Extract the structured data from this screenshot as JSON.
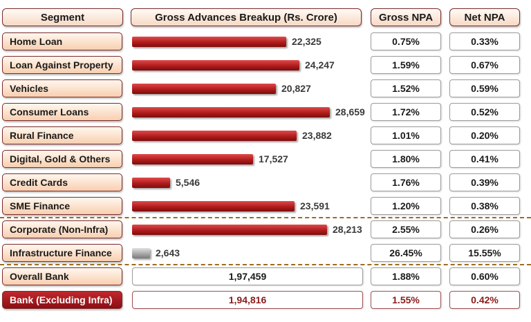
{
  "headers": {
    "segment": "Segment",
    "advances": "Gross Advances Breakup (Rs. Crore)",
    "gross_npa": "Gross NPA",
    "net_npa": "Net NPA"
  },
  "rows": [
    {
      "segment": "Home Loan",
      "advances": "22,325",
      "gross_npa": "0.75%",
      "net_npa": "0.33%"
    },
    {
      "segment": "Loan Against Property",
      "advances": "24,247",
      "gross_npa": "1.59%",
      "net_npa": "0.67%"
    },
    {
      "segment": "Vehicles",
      "advances": "20,827",
      "gross_npa": "1.52%",
      "net_npa": "0.59%"
    },
    {
      "segment": "Consumer Loans",
      "advances": "28,659",
      "gross_npa": "1.72%",
      "net_npa": "0.52%"
    },
    {
      "segment": "Rural Finance",
      "advances": "23,882",
      "gross_npa": "1.01%",
      "net_npa": "0.20%"
    },
    {
      "segment": "Digital, Gold & Others",
      "advances": "17,527",
      "gross_npa": "1.80%",
      "net_npa": "0.41%"
    },
    {
      "segment": "Credit Cards",
      "advances": "5,546",
      "gross_npa": "1.76%",
      "net_npa": "0.39%"
    },
    {
      "segment": "SME Finance",
      "advances": "23,591",
      "gross_npa": "1.20%",
      "net_npa": "0.38%"
    },
    {
      "segment": "Corporate (Non-Infra)",
      "advances": "28,213",
      "gross_npa": "2.55%",
      "net_npa": "0.26%"
    },
    {
      "segment": "Infrastructure Finance",
      "advances": "2,643",
      "gross_npa": "26.45%",
      "net_npa": "15.55%"
    }
  ],
  "totals": [
    {
      "segment": "Overall Bank",
      "advances": "1,97,459",
      "gross_npa": "1.88%",
      "net_npa": "0.60%"
    },
    {
      "segment": "Bank (Excluding Infra)",
      "advances": "1,94,816",
      "gross_npa": "1.55%",
      "net_npa": "0.42%"
    }
  ],
  "chart_data": {
    "type": "bar",
    "orientation": "horizontal",
    "title": "Gross Advances Breakup (Rs. Crore)",
    "categories": [
      "Home Loan",
      "Loan Against Property",
      "Vehicles",
      "Consumer Loans",
      "Rural Finance",
      "Digital, Gold & Others",
      "Credit Cards",
      "SME Finance",
      "Corporate (Non-Infra)",
      "Infrastructure Finance"
    ],
    "values": [
      22325,
      24247,
      20827,
      28659,
      23882,
      17527,
      5546,
      23591,
      28213,
      2643
    ],
    "bar_colors": [
      "#b01c1c",
      "#b01c1c",
      "#b01c1c",
      "#b01c1c",
      "#b01c1c",
      "#b01c1c",
      "#b01c1c",
      "#b01c1c",
      "#b01c1c",
      "#a8a8a8"
    ],
    "data_labels": [
      "22,325",
      "24,247",
      "20,827",
      "28,659",
      "23,882",
      "17,527",
      "5,546",
      "23,591",
      "28,213",
      "2,643"
    ]
  },
  "colors": {
    "accent_red": "#b01c1c",
    "header_border": "#7a2b2b",
    "divider": "#9c6b1f"
  }
}
